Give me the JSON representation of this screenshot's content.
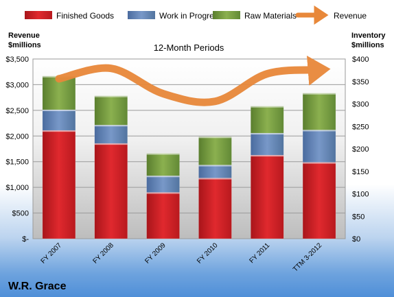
{
  "chart_data": {
    "type": "bar",
    "stacked": true,
    "subtitle": "12-Month Periods",
    "company": "W.R. Grace",
    "left_axis": {
      "title_line1": "Revenue",
      "title_line2": "$millions",
      "range": [
        0,
        3500
      ],
      "ticks": [
        0,
        500,
        1000,
        1500,
        2000,
        2500,
        3000,
        3500
      ],
      "tick_labels": [
        "$-",
        "$500",
        "$1,000",
        "$1,500",
        "$2,000",
        "$2,500",
        "$3,000",
        "$3,500"
      ]
    },
    "right_axis": {
      "title_line1": "Inventory",
      "title_line2": "$millions",
      "range": [
        0,
        400
      ],
      "ticks": [
        0,
        50,
        100,
        150,
        200,
        250,
        300,
        350,
        400
      ],
      "tick_labels": [
        "$0",
        "$50",
        "$100",
        "$150",
        "$200",
        "$250",
        "$300",
        "$350",
        "$400"
      ]
    },
    "categories": [
      "FY 2007",
      "FY 2008",
      "FY 2009",
      "FY 2010",
      "FY 2011",
      "TTM 3-2012"
    ],
    "series": [
      {
        "name": "Finished Goods",
        "axis": "right",
        "color": "#cc1f24",
        "values": [
          241,
          212,
          103,
          135,
          186,
          170
        ]
      },
      {
        "name": "Work in Progress",
        "axis": "right",
        "color": "#5b7fb5",
        "values": [
          46,
          41,
          37,
          29,
          49,
          72
        ]
      },
      {
        "name": "Raw Materials",
        "axis": "right",
        "color": "#6e9639",
        "values": [
          75,
          65,
          50,
          63,
          60,
          82
        ]
      },
      {
        "name": "Revenue",
        "axis": "left",
        "type": "line",
        "color": "#e8883a",
        "values": [
          3115,
          3317,
          2825,
          2675,
          3212,
          3290
        ]
      }
    ],
    "grid": true,
    "legend_position": "top"
  }
}
